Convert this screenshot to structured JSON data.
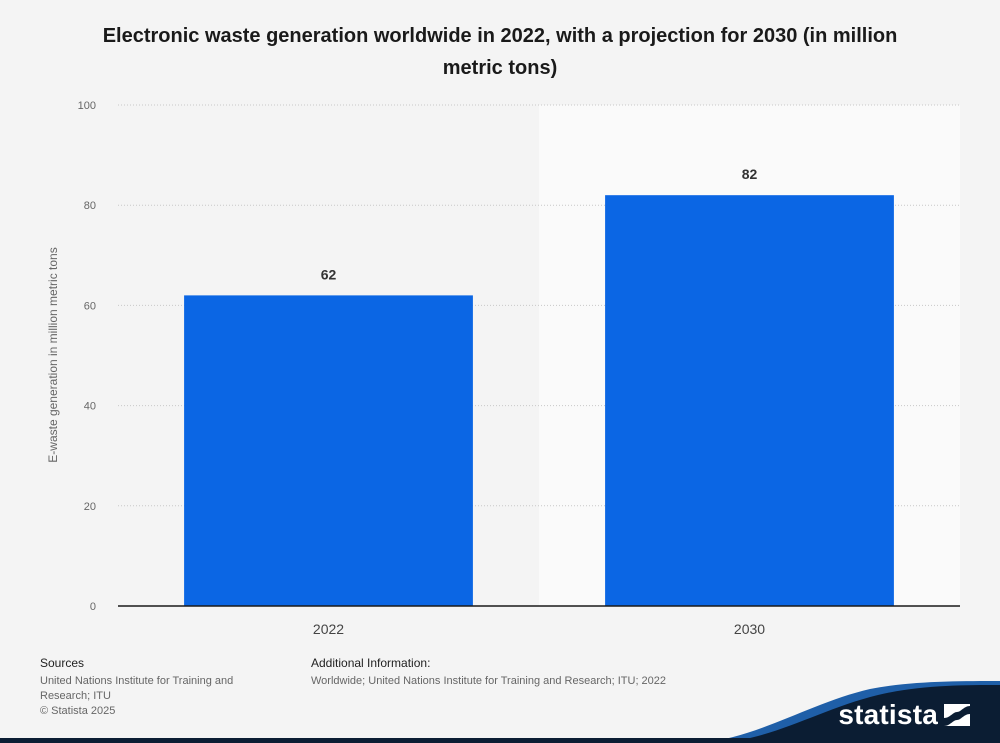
{
  "chart_data": {
    "type": "bar",
    "title": "Electronic waste generation worldwide in 2022, with a projection for 2030 (in million metric tons)",
    "categories": [
      "2022",
      "2030"
    ],
    "values": [
      62,
      82
    ],
    "data_labels": [
      "62",
      "82"
    ],
    "xlabel": "",
    "ylabel": "E-waste generation in million metric tons",
    "ylim": [
      0,
      100
    ],
    "yticks": [
      0,
      20,
      40,
      60,
      80,
      100
    ],
    "ytick_labels": [
      "0",
      "20",
      "40",
      "60",
      "80",
      "100"
    ],
    "grid": true,
    "projection_region_start_index": 1,
    "bar_color": "#0b66e4"
  },
  "footer": {
    "sources_heading": "Sources",
    "sources_lines": [
      "United Nations Institute for Training and Research; ITU",
      "© Statista 2025"
    ],
    "additional_heading": "Additional Information:",
    "additional_text": "Worldwide; United Nations Institute for Training and Research; ITU; 2022"
  },
  "brand": {
    "name": "statista"
  },
  "colors": {
    "background": "#f4f4f4",
    "projection_shade": "#fafafa",
    "gridline": "#c8c8c8",
    "axis": "#1a1a1a",
    "brand_dark": "#0b1d33",
    "brand_light": "#1f5fa8"
  }
}
